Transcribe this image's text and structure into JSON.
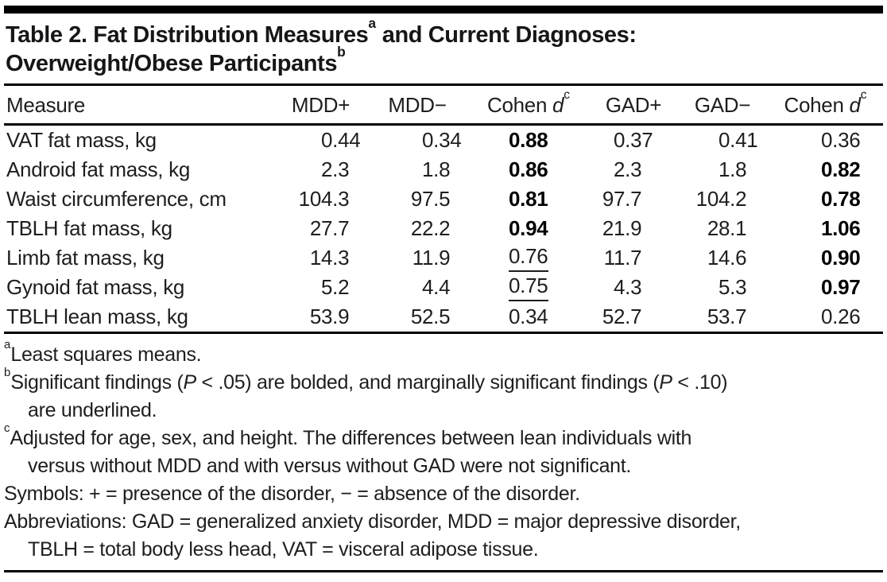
{
  "page": {
    "background": "#ffffff",
    "text_color": "#1e1e20",
    "rule_color": "#000000"
  },
  "table": {
    "title_parts": [
      {
        "text": "Table 2. Fat Distribution Measures"
      },
      {
        "text": "a",
        "sup": true
      },
      {
        "text": " and Current Diagnoses:"
      },
      {
        "br": true
      },
      {
        "text": "Overweight/Obese Participants"
      },
      {
        "text": "b",
        "sup": true
      }
    ],
    "columns": [
      {
        "key": "measure",
        "align": "left",
        "label_parts": [
          {
            "text": "Measure"
          }
        ]
      },
      {
        "key": "mdd-plus",
        "label_parts": [
          {
            "text": "MDD+"
          }
        ]
      },
      {
        "key": "mdd-minus",
        "label_parts": [
          {
            "text": "MDD−"
          }
        ]
      },
      {
        "key": "cohen-d-mdd",
        "label_parts": [
          {
            "text": "Cohen "
          },
          {
            "text": "d",
            "italic": true
          },
          {
            "text": "c",
            "sup": true
          }
        ]
      },
      {
        "key": "gad-plus",
        "label_parts": [
          {
            "text": "GAD+"
          }
        ]
      },
      {
        "key": "gad-minus",
        "label_parts": [
          {
            "text": "GAD−"
          }
        ]
      },
      {
        "key": "cohen-d-gad",
        "label_parts": [
          {
            "text": "Cohen "
          },
          {
            "text": "d",
            "italic": true
          },
          {
            "text": "c",
            "sup": true
          }
        ]
      }
    ],
    "rows": [
      {
        "measure": "VAT fat mass, kg",
        "values": [
          "0.44",
          "0.34",
          {
            "v": "0.88",
            "bold": true
          },
          "0.37",
          "0.41",
          "0.36"
        ]
      },
      {
        "measure": "Android fat mass, kg",
        "values": [
          "2.3",
          "1.8",
          {
            "v": "0.86",
            "bold": true
          },
          "2.3",
          "1.8",
          {
            "v": "0.82",
            "bold": true
          }
        ]
      },
      {
        "measure": "Waist circumference, cm",
        "values": [
          "104.3",
          "97.5",
          {
            "v": "0.81",
            "bold": true
          },
          "97.7",
          "104.2",
          {
            "v": "0.78",
            "bold": true
          }
        ]
      },
      {
        "measure": "TBLH fat mass, kg",
        "values": [
          "27.7",
          "22.2",
          {
            "v": "0.94",
            "bold": true
          },
          "21.9",
          "28.1",
          {
            "v": "1.06",
            "bold": true
          }
        ]
      },
      {
        "measure": "Limb fat mass, kg",
        "values": [
          "14.3",
          "11.9",
          {
            "v": "0.76",
            "underline": true
          },
          "11.7",
          "14.6",
          {
            "v": "0.90",
            "bold": true
          }
        ]
      },
      {
        "measure": "Gynoid fat mass, kg",
        "values": [
          "5.2",
          "4.4",
          {
            "v": "0.75",
            "underline": true
          },
          "4.3",
          "5.3",
          {
            "v": "0.97",
            "bold": true
          }
        ]
      },
      {
        "measure": "TBLH lean mass, kg",
        "values": [
          "53.9",
          "52.5",
          "0.34",
          "52.7",
          "53.7",
          "0.26"
        ]
      }
    ]
  },
  "footnotes": [
    {
      "parts": [
        {
          "text": "a",
          "sup": true
        },
        {
          "text": "Least squares means."
        }
      ]
    },
    {
      "parts": [
        {
          "text": "b",
          "sup": true
        },
        {
          "text": "Significant findings ("
        },
        {
          "text": "P",
          "italic": true
        },
        {
          "text": " < .05) are bolded, and marginally significant findings ("
        },
        {
          "text": "P",
          "italic": true
        },
        {
          "text": " < .10)"
        },
        {
          "br": true
        },
        {
          "text": "are underlined."
        }
      ]
    },
    {
      "parts": [
        {
          "text": "c",
          "sup": true
        },
        {
          "text": "Adjusted for age, sex, and height. The differences between lean individuals with"
        },
        {
          "br": true
        },
        {
          "text": "versus without MDD and with versus without GAD were not significant."
        }
      ]
    },
    {
      "parts": [
        {
          "text": "Symbols: + = presence of the disorder, − = absence of the disorder."
        }
      ]
    },
    {
      "parts": [
        {
          "text": "Abbreviations: GAD = generalized anxiety disorder, MDD = major depressive disorder,"
        },
        {
          "br": true
        },
        {
          "text": "TBLH = total body less head, VAT = visceral adipose tissue."
        }
      ]
    }
  ]
}
